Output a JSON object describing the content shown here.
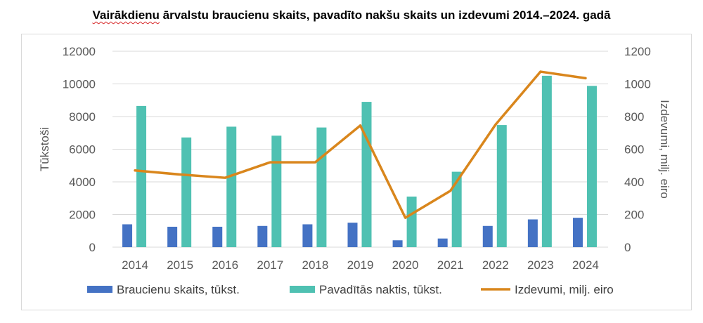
{
  "title_prefix": "Vairākdienu",
  "title_rest": " ārvalstu braucienu skaits, pavadīto nakšu skaits un izdevumi 2014.–2024. gadā",
  "chart_data": {
    "type": "bar",
    "title": "Vairākdienu ārvalstu braucienu skaits, pavadīto nakšu skaits un izdevumi 2014.–2024. gadā",
    "categories": [
      "2014",
      "2015",
      "2016",
      "2017",
      "2018",
      "2019",
      "2020",
      "2021",
      "2022",
      "2023",
      "2024"
    ],
    "ylabel": "Tūkstoši",
    "y2label": "Izdevumi, milj. eiro",
    "ylim": [
      0,
      12000
    ],
    "y2lim": [
      0,
      1200
    ],
    "yticks": [
      "0",
      "2000",
      "4000",
      "6000",
      "8000",
      "10000",
      "12000"
    ],
    "y2ticks": [
      "0",
      "200",
      "400",
      "600",
      "800",
      "1000",
      "1200"
    ],
    "grid": true,
    "legend_position": "bottom",
    "series": [
      {
        "name": "Braucienu skaits, tūkst.",
        "type": "bar",
        "axis": "left",
        "color": "#4472c4",
        "values": [
          1400,
          1250,
          1250,
          1300,
          1400,
          1500,
          420,
          530,
          1300,
          1700,
          1800
        ]
      },
      {
        "name": "Pavadītās naktis, tūkst.",
        "type": "bar",
        "axis": "left",
        "color": "#4fc1b2",
        "values": [
          8650,
          6720,
          7380,
          6830,
          7330,
          8900,
          3100,
          4620,
          7480,
          10500,
          9880
        ]
      },
      {
        "name": "Izdevumi, milj. eiro",
        "type": "line",
        "axis": "right",
        "color": "#d9861c",
        "values": [
          470,
          445,
          425,
          520,
          520,
          745,
          180,
          345,
          750,
          1075,
          1035
        ]
      }
    ]
  }
}
